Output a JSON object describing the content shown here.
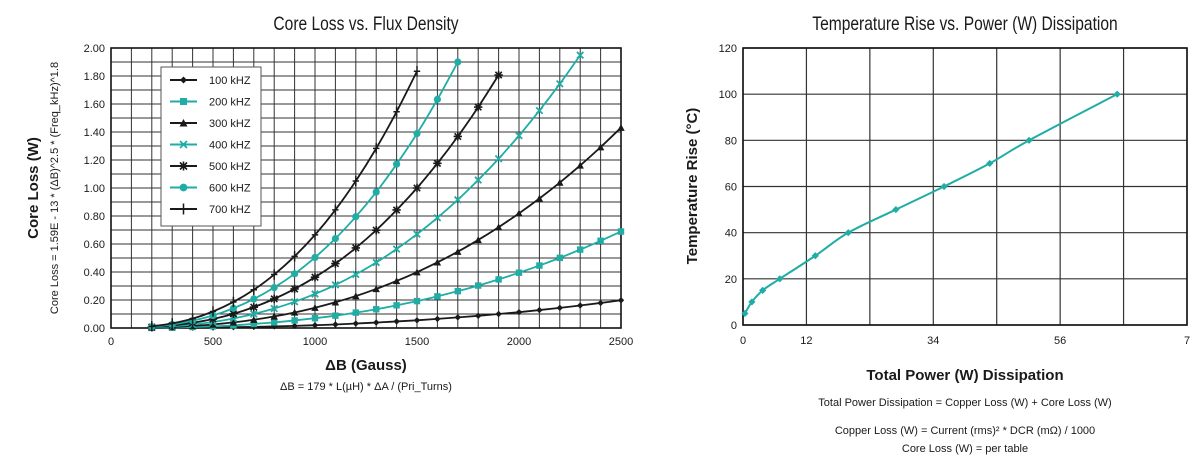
{
  "colors": {
    "black": "#1a1a1a",
    "teal": "#1fada5",
    "grid": "#333333"
  },
  "chart_data": [
    {
      "type": "line",
      "title": "Core Loss vs. Flux Density",
      "xlabel": "ΔB (Gauss)",
      "xlabel_note": "ΔB = 179 * L(µH) * ΔA / (Pri_Turns)",
      "ylabel": "Core Loss (W)",
      "ylabel_note": "Core Loss = 1.59E - 13 * (ΔB)^2.5 * (Freq_kHz)^1.8",
      "xlim": [
        0,
        2500
      ],
      "ylim": [
        0,
        2.0
      ],
      "xticks": [
        "0",
        "500",
        "1000",
        "1500",
        "2000",
        "2500"
      ],
      "yticks": [
        "0.00",
        "0.20",
        "0.40",
        "0.60",
        "0.80",
        "1.00",
        "1.20",
        "1.40",
        "1.60",
        "1.80",
        "2.00"
      ],
      "grid": true,
      "legend_placement": "top-left",
      "series": [
        {
          "name": "100 kHZ",
          "color": "#1a1a1a",
          "marker": "diamond",
          "x_start": 200,
          "x_step": 100,
          "values": [
            0.0,
            0.001,
            0.002,
            0.003,
            0.006,
            0.008,
            0.011,
            0.015,
            0.02,
            0.025,
            0.032,
            0.039,
            0.047,
            0.055,
            0.065,
            0.076,
            0.087,
            0.1,
            0.113,
            0.128,
            0.144,
            0.161,
            0.179,
            0.198
          ]
        },
        {
          "name": "200 kHZ",
          "color": "#1fada5",
          "marker": "square",
          "x_start": 200,
          "x_step": 100,
          "values": [
            0.001,
            0.003,
            0.007,
            0.012,
            0.019,
            0.029,
            0.04,
            0.054,
            0.07,
            0.088,
            0.11,
            0.134,
            0.162,
            0.192,
            0.226,
            0.263,
            0.303,
            0.347,
            0.395,
            0.446,
            0.501,
            0.56,
            0.623,
            0.689
          ]
        },
        {
          "name": "300 kHZ",
          "color": "#1a1a1a",
          "marker": "triangle",
          "x_start": 200,
          "x_step": 100,
          "values": [
            0.003,
            0.007,
            0.015,
            0.025,
            0.04,
            0.059,
            0.083,
            0.111,
            0.145,
            0.184,
            0.228,
            0.279,
            0.336,
            0.399,
            0.469,
            0.545,
            0.629,
            0.72,
            0.819,
            0.925,
            1.039,
            1.161,
            1.292,
            1.431
          ]
        },
        {
          "name": "400 kHZ",
          "color": "#1fada5",
          "marker": "x",
          "x_start": 200,
          "x_step": 100,
          "values": [
            0.004,
            0.012,
            0.025,
            0.043,
            0.068,
            0.1,
            0.139,
            0.187,
            0.243,
            0.308,
            0.383,
            0.468,
            0.564,
            0.67,
            0.787,
            0.916,
            1.057,
            1.209,
            1.374,
            1.553,
            1.744,
            1.949
          ]
        },
        {
          "name": "500 kHZ",
          "color": "#1a1a1a",
          "marker": "asterisk",
          "x_start": 200,
          "x_step": 100,
          "values": [
            0.007,
            0.018,
            0.037,
            0.064,
            0.101,
            0.149,
            0.208,
            0.279,
            0.363,
            0.46,
            0.572,
            0.699,
            0.843,
            1.0,
            1.176,
            1.368,
            1.578,
            1.807
          ]
        },
        {
          "name": "600 kHZ",
          "color": "#1fada5",
          "marker": "circle",
          "x_start": 200,
          "x_step": 100,
          "values": [
            0.009,
            0.025,
            0.052,
            0.089,
            0.141,
            0.207,
            0.289,
            0.387,
            0.504,
            0.639,
            0.795,
            0.971,
            1.17,
            1.389,
            1.633,
            1.9
          ]
        },
        {
          "name": "700 kHZ",
          "color": "#1a1a1a",
          "marker": "plus",
          "x_start": 200,
          "x_step": 100,
          "values": [
            0.012,
            0.033,
            0.067,
            0.118,
            0.186,
            0.273,
            0.382,
            0.512,
            0.665,
            0.844,
            1.05,
            1.283,
            1.545,
            1.834
          ]
        }
      ]
    },
    {
      "type": "line",
      "title": "Temperature Rise vs. Power (W) Dissipation",
      "xlabel": "Total Power (W) Dissipation",
      "ylabel": "Temperature Rise (°C)",
      "xlim": [
        0,
        7
      ],
      "ylim": [
        0,
        120
      ],
      "xticks": [
        {
          "value": 0,
          "label": "0"
        },
        {
          "value": 1,
          "label": "12"
        },
        {
          "value": 3,
          "label": "34"
        },
        {
          "value": 5,
          "label": "56"
        },
        {
          "value": 7,
          "label": "7"
        }
      ],
      "yticks": [
        "0",
        "20",
        "40",
        "60",
        "80",
        "100",
        "120"
      ],
      "grid": true,
      "series": [
        {
          "color": "#1fada5",
          "marker": "diamond",
          "points": [
            [
              0.03,
              5
            ],
            [
              0.14,
              10
            ],
            [
              0.31,
              15
            ],
            [
              0.58,
              20
            ],
            [
              1.14,
              30
            ],
            [
              1.66,
              40
            ],
            [
              2.41,
              50
            ],
            [
              3.17,
              60
            ],
            [
              3.89,
              70
            ],
            [
              4.51,
              80
            ],
            [
              5.9,
              100
            ]
          ]
        }
      ],
      "notes": [
        "Total Power Dissipation = Copper Loss (W) + Core Loss (W)",
        "Copper Loss (W) = Current (rms)² * DCR (mΩ) / 1000",
        "Core Loss (W) = per table"
      ]
    }
  ]
}
